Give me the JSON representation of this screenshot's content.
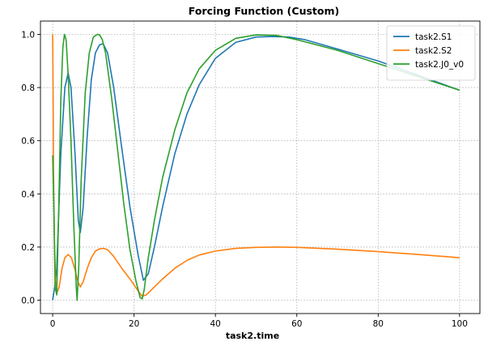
{
  "chart_data": {
    "type": "line",
    "title": "Forcing Function (Custom)",
    "xlabel": "task2.time",
    "ylabel": "",
    "xlim": [
      -3,
      105
    ],
    "ylim": [
      -0.05,
      1.05
    ],
    "xticks": [
      0,
      20,
      40,
      60,
      80,
      100
    ],
    "yticks": [
      0.0,
      0.2,
      0.4,
      0.6,
      0.8,
      1.0
    ],
    "xtick_labels": [
      "0",
      "20",
      "40",
      "60",
      "80",
      "100"
    ],
    "ytick_labels": [
      "0.0",
      "0.2",
      "0.4",
      "0.6",
      "0.8",
      "1.0"
    ],
    "grid": true,
    "legend_position": "top-right",
    "series": [
      {
        "name": "task2.S1",
        "color": "#1f77b4",
        "x": [
          0,
          0.5,
          1,
          2,
          3,
          3.8,
          4.5,
          5.5,
          6.3,
          6.8,
          7.5,
          8.5,
          9.5,
          10.5,
          11.5,
          12.4,
          13.5,
          15,
          17,
          19,
          21,
          22.3,
          23.5,
          25,
          27,
          30,
          33,
          36,
          40,
          45,
          50,
          54,
          58,
          62,
          70,
          80,
          90,
          100
        ],
        "y": [
          0.0,
          0.05,
          0.12,
          0.55,
          0.8,
          0.855,
          0.8,
          0.55,
          0.3,
          0.255,
          0.35,
          0.62,
          0.83,
          0.93,
          0.96,
          0.965,
          0.93,
          0.8,
          0.57,
          0.35,
          0.17,
          0.075,
          0.1,
          0.2,
          0.35,
          0.55,
          0.7,
          0.81,
          0.91,
          0.97,
          0.99,
          0.992,
          0.99,
          0.98,
          0.945,
          0.9,
          0.845,
          0.79
        ]
      },
      {
        "name": "task2.S2",
        "color": "#ff7f0e",
        "x": [
          0,
          0.1,
          0.2,
          0.4,
          0.7,
          1.1,
          1.6,
          2.3,
          3,
          3.8,
          4.6,
          5.4,
          6.2,
          6.8,
          7.5,
          8.5,
          9.5,
          10.5,
          11.5,
          12.5,
          13.5,
          15,
          17,
          19,
          21,
          22,
          23,
          25,
          27,
          30,
          33,
          36,
          40,
          45,
          50,
          55,
          60,
          70,
          80,
          90,
          100
        ],
        "y": [
          1.0,
          0.8,
          0.5,
          0.25,
          0.08,
          0.03,
          0.05,
          0.12,
          0.16,
          0.172,
          0.16,
          0.12,
          0.07,
          0.05,
          0.07,
          0.12,
          0.16,
          0.185,
          0.193,
          0.195,
          0.19,
          0.165,
          0.12,
          0.08,
          0.035,
          0.015,
          0.02,
          0.05,
          0.08,
          0.12,
          0.15,
          0.17,
          0.185,
          0.195,
          0.199,
          0.2,
          0.199,
          0.192,
          0.183,
          0.172,
          0.16
        ]
      },
      {
        "name": "task2.J0_v0",
        "color": "#2ca02c",
        "x": [
          0,
          0.3,
          0.6,
          1,
          1.5,
          2,
          2.5,
          2.9,
          3.3,
          3.8,
          4.5,
          5.2,
          5.8,
          6,
          6.4,
          7,
          8,
          9,
          10,
          11,
          11.5,
          12.2,
          13,
          14.5,
          16,
          17.5,
          19,
          20.5,
          21.5,
          22,
          22.5,
          23.5,
          25,
          27,
          30,
          33,
          36,
          40,
          45,
          50,
          55,
          60,
          70,
          80,
          90,
          100
        ],
        "y": [
          0.545,
          0.35,
          0.05,
          0.02,
          0.35,
          0.75,
          0.95,
          1.0,
          0.98,
          0.85,
          0.6,
          0.28,
          0.05,
          0.0,
          0.12,
          0.45,
          0.78,
          0.93,
          0.99,
          1.0,
          0.998,
          0.98,
          0.93,
          0.76,
          0.56,
          0.36,
          0.19,
          0.07,
          0.01,
          0.005,
          0.04,
          0.16,
          0.3,
          0.46,
          0.64,
          0.78,
          0.87,
          0.94,
          0.985,
          0.998,
          0.996,
          0.98,
          0.94,
          0.89,
          0.84,
          0.79
        ]
      }
    ]
  }
}
